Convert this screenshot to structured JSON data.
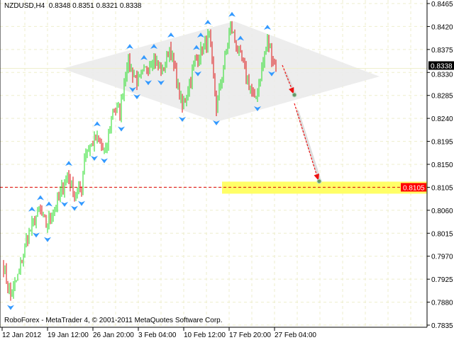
{
  "header": {
    "symbol": "NZDUSD,H4",
    "ohlc": "0.8348 0.8351 0.8321 0.8338"
  },
  "footer": {
    "copyright": "RoboForex - MetaTrader 4, © 2001-2011 MetaQuotes Software Corp."
  },
  "chart_data": {
    "type": "candlestick-bars",
    "symbol": "NZDUSD",
    "timeframe": "H4",
    "ylim": [
      0.7835,
      0.8465
    ],
    "y_ticks": [
      "0.8465",
      "0.8420",
      "0.8375",
      "0.8330",
      "0.8285",
      "0.8240",
      "0.8195",
      "0.8150",
      "0.8105",
      "0.8060",
      "0.8015",
      "0.7970",
      "0.7925",
      "0.7880",
      "0.7835"
    ],
    "x_ticks": [
      "12 Jan 2012",
      "19 Jan 12:00",
      "26 Jan 20:00",
      "3 Feb 04:00",
      "10 Feb 12:00",
      "17 Feb 20:00",
      "27 Feb 04:00"
    ],
    "grid": true,
    "current_price": "0.8338",
    "target_price": "0.8105",
    "approx_close_path_by_bar": [
      [
        1,
        0.795
      ],
      [
        6,
        0.789
      ],
      [
        11,
        0.793
      ],
      [
        18,
        0.801
      ],
      [
        26,
        0.806
      ],
      [
        31,
        0.803
      ],
      [
        38,
        0.807
      ],
      [
        46,
        0.813
      ],
      [
        51,
        0.809
      ],
      [
        56,
        0.81
      ],
      [
        58,
        0.817
      ],
      [
        66,
        0.82
      ],
      [
        73,
        0.817
      ],
      [
        78,
        0.826
      ],
      [
        83,
        0.825
      ],
      [
        88,
        0.835
      ],
      [
        96,
        0.831
      ],
      [
        106,
        0.836
      ],
      [
        113,
        0.833
      ],
      [
        118,
        0.838
      ],
      [
        127,
        0.826
      ],
      [
        136,
        0.835
      ],
      [
        146,
        0.84
      ],
      [
        151,
        0.826
      ],
      [
        161,
        0.842
      ],
      [
        168,
        0.836
      ],
      [
        178,
        0.827
      ],
      [
        187,
        0.839
      ],
      [
        193,
        0.8338
      ]
    ],
    "pattern": "diamond",
    "forecast_arrows": [
      [
        0.8345,
        0.829
      ],
      [
        0.8275,
        0.8105
      ]
    ],
    "colors": {
      "up": "#22dd22",
      "down": "#dd1111",
      "fractal": "#3399ff",
      "diamond": "#eeeeee",
      "target_zone": "#ffff66",
      "target_line": "#dd0000",
      "forecast": "#ee1111",
      "grid": "#eeeecc"
    }
  }
}
